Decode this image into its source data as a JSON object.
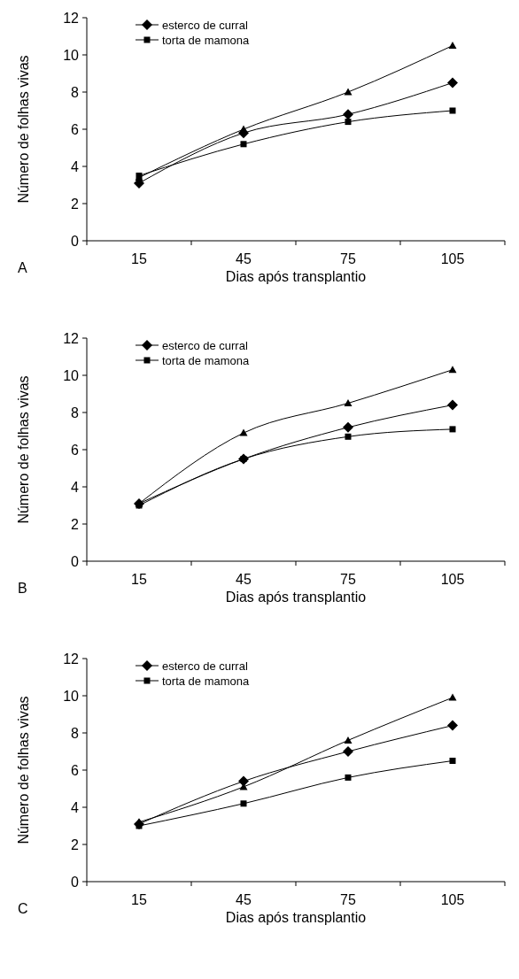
{
  "chart_data": [
    {
      "type": "line",
      "categories": [
        "15",
        "45",
        "75",
        "105"
      ],
      "xlabel": "Dias após transplantio",
      "ylabel": "Número de folhas vivas",
      "ylim": [
        0,
        12
      ],
      "yticks": [
        0,
        2,
        4,
        6,
        8,
        10,
        12
      ],
      "legend": "top left",
      "annotations": [
        "A"
      ],
      "series": [
        {
          "name": "esterco de curral",
          "color": "#000000",
          "marker": "diamond",
          "values": [
            3.1,
            5.8,
            6.8,
            8.5
          ]
        },
        {
          "name": "torta de mamona",
          "color": "#000000",
          "marker": "square",
          "values": [
            3.5,
            5.2,
            6.4,
            7.0
          ]
        },
        {
          "color": "#000000",
          "marker": "triangle",
          "values": [
            3.4,
            6.0,
            8.0,
            10.5
          ]
        }
      ]
    },
    {
      "type": "line",
      "categories": [
        "15",
        "45",
        "75",
        "105"
      ],
      "xlabel": "Dias após transplantio",
      "ylabel": "Número de folhas vivas",
      "ylim": [
        0,
        12
      ],
      "yticks": [
        0,
        2,
        4,
        6,
        8,
        10,
        12
      ],
      "legend": "top left",
      "annotations": [
        "B"
      ],
      "series": [
        {
          "name": "esterco de curral",
          "color": "#000000",
          "marker": "diamond",
          "values": [
            3.1,
            5.5,
            7.2,
            8.4
          ]
        },
        {
          "name": "torta de mamona",
          "color": "#000000",
          "marker": "square",
          "values": [
            3.0,
            5.5,
            6.7,
            7.1
          ]
        },
        {
          "color": "#000000",
          "marker": "triangle",
          "values": [
            3.1,
            6.9,
            8.5,
            10.3
          ]
        }
      ]
    },
    {
      "type": "line",
      "categories": [
        "15",
        "45",
        "75",
        "105"
      ],
      "xlabel": "Dias após transplantio",
      "ylabel": "Número de folhas vivas",
      "ylim": [
        0,
        12
      ],
      "yticks": [
        0,
        2,
        4,
        6,
        8,
        10,
        12
      ],
      "legend": "top left",
      "annotations": [
        "C"
      ],
      "series": [
        {
          "name": "esterco de curral",
          "color": "#000000",
          "marker": "diamond",
          "values": [
            3.1,
            5.4,
            7.0,
            8.4
          ]
        },
        {
          "name": "torta de mamona",
          "color": "#000000",
          "marker": "square",
          "values": [
            3.0,
            4.2,
            5.6,
            6.5
          ]
        },
        {
          "color": "#000000",
          "marker": "triangle",
          "values": [
            3.2,
            5.1,
            7.6,
            9.9
          ]
        }
      ]
    }
  ]
}
